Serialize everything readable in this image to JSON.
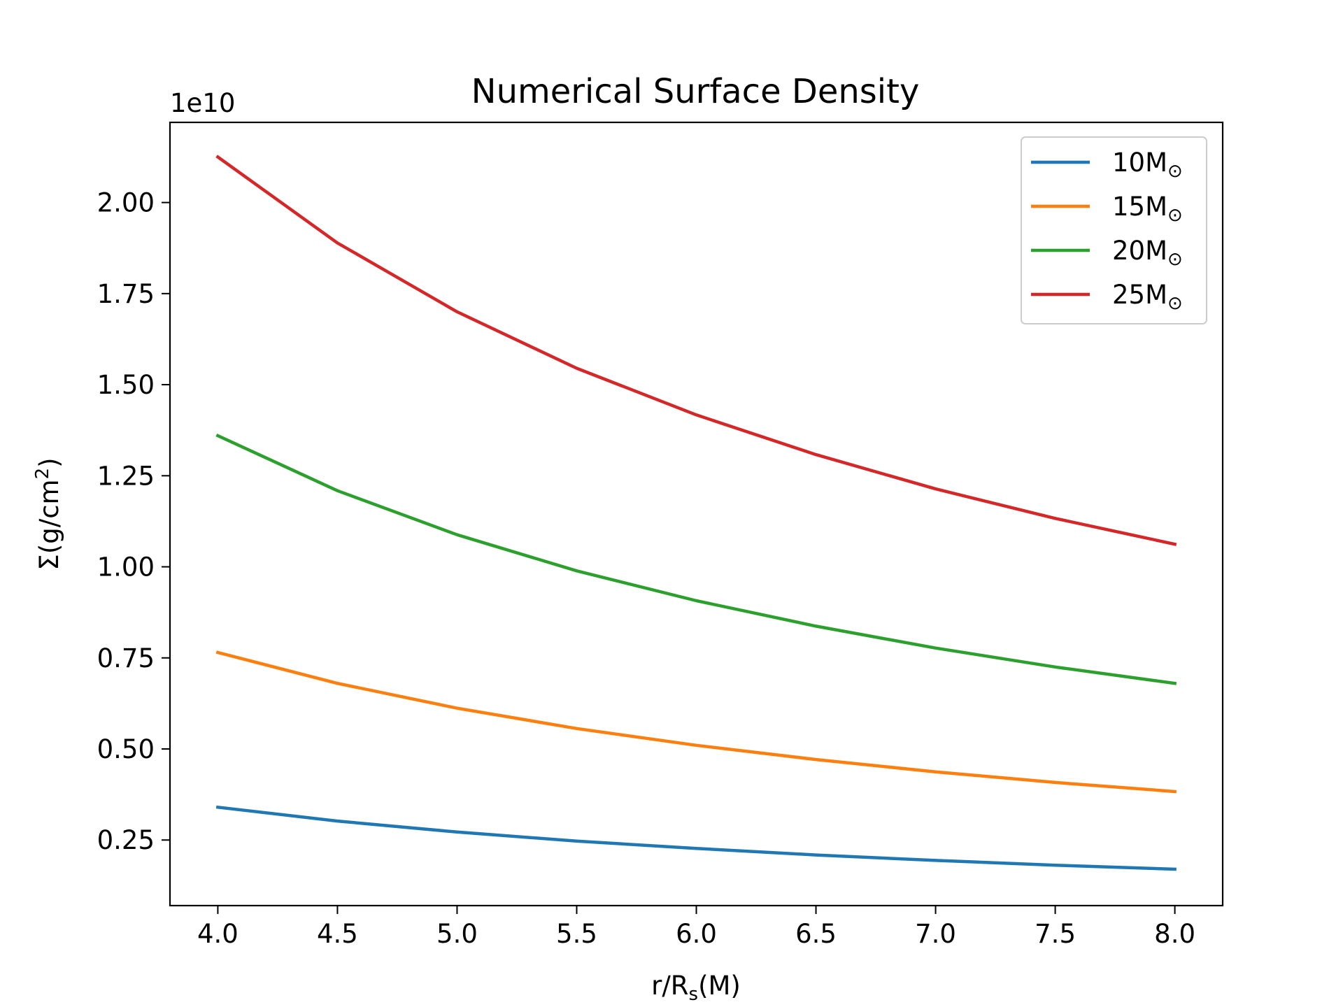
{
  "chart_data": {
    "type": "line",
    "title": "Numerical Surface Density",
    "xlabel": "r/R_s(M)",
    "ylabel": "Σ(g/cm²)",
    "y_offset_label": "1e10",
    "xlim": [
      3.8,
      8.2
    ],
    "ylim": [
      0.07,
      2.22
    ],
    "x_ticks": [
      4.0,
      4.5,
      5.0,
      5.5,
      6.0,
      6.5,
      7.0,
      7.5,
      8.0
    ],
    "x_tick_labels": [
      "4.0",
      "4.5",
      "5.0",
      "5.5",
      "6.0",
      "6.5",
      "7.0",
      "7.5",
      "8.0"
    ],
    "y_ticks": [
      0.25,
      0.5,
      0.75,
      1.0,
      1.25,
      1.5,
      1.75,
      2.0
    ],
    "y_tick_labels": [
      "0.25",
      "0.50",
      "0.75",
      "1.00",
      "1.25",
      "1.50",
      "1.75",
      "2.00"
    ],
    "grid": false,
    "legend_position": "top-right",
    "x": [
      4.0,
      4.5,
      5.0,
      5.5,
      6.0,
      6.5,
      7.0,
      7.5,
      8.0
    ],
    "series": [
      {
        "name": "10M",
        "name_suffix": "⊙",
        "color": "#1f77b4",
        "values": [
          0.34,
          0.302,
          0.272,
          0.247,
          0.227,
          0.209,
          0.194,
          0.181,
          0.17
        ]
      },
      {
        "name": "15M",
        "name_suffix": "⊙",
        "color": "#ff7f0e",
        "values": [
          0.765,
          0.68,
          0.612,
          0.556,
          0.51,
          0.471,
          0.437,
          0.408,
          0.383
        ]
      },
      {
        "name": "20M",
        "name_suffix": "⊙",
        "color": "#2ca02c",
        "values": [
          1.36,
          1.209,
          1.088,
          0.989,
          0.907,
          0.837,
          0.777,
          0.725,
          0.68
        ]
      },
      {
        "name": "25M",
        "name_suffix": "⊙",
        "color": "#d62728",
        "values": [
          2.125,
          1.889,
          1.7,
          1.545,
          1.417,
          1.308,
          1.214,
          1.133,
          1.062
        ]
      }
    ]
  }
}
